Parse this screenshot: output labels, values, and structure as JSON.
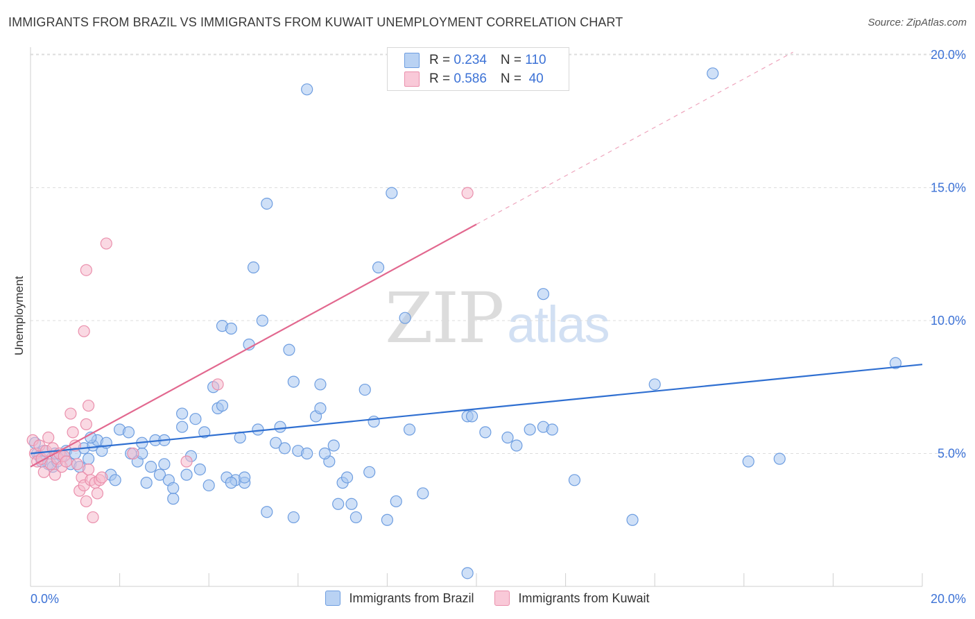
{
  "title": "IMMIGRANTS FROM BRAZIL VS IMMIGRANTS FROM KUWAIT UNEMPLOYMENT CORRELATION CHART",
  "source": "Source: ZipAtlas.com",
  "watermark": {
    "zip": "ZIP",
    "atlas": "atlas"
  },
  "legend_top": [
    {
      "r_label": "R = ",
      "r_value": "0.234",
      "n_label": "N = ",
      "n_value": "110"
    },
    {
      "r_label": "R = ",
      "r_value": "0.586",
      "n_label": "N = ",
      "n_value": " 40"
    }
  ],
  "legend_bottom": [
    "Immigrants from Brazil",
    "Immigrants from Kuwait"
  ],
  "colors": {
    "brazil_fill": "#a8c6f0",
    "brazil_stroke": "#6d9de0",
    "brazil_line": "#2f6fd1",
    "kuwait_fill": "#f6b9cc",
    "kuwait_stroke": "#ea8fac",
    "kuwait_line": "#e2688f",
    "tick_label": "#3c72d6",
    "grid": "#dcdcdc"
  },
  "chart_data": {
    "type": "scatter",
    "title": "IMMIGRANTS FROM BRAZIL VS IMMIGRANTS FROM KUWAIT UNEMPLOYMENT CORRELATION CHART",
    "xlabel": "",
    "ylabel": "Unemployment",
    "xlim": [
      0,
      20
    ],
    "ylim": [
      0,
      20.5
    ],
    "x_tick_labels": [
      {
        "value": 0,
        "label": "0.0%"
      },
      {
        "value": 20,
        "label": "20.0%"
      }
    ],
    "y_tick_labels": [
      {
        "value": 5,
        "label": "5.0%"
      },
      {
        "value": 10,
        "label": "10.0%"
      },
      {
        "value": 15,
        "label": "15.0%"
      },
      {
        "value": 20,
        "label": "20.0%"
      }
    ],
    "x_minor_ticks": [
      2,
      4,
      6,
      8,
      10,
      12,
      14,
      16,
      18,
      20
    ],
    "grid": true,
    "series": [
      {
        "name": "Immigrants from Brazil",
        "R": 0.234,
        "N": 110,
        "trend": {
          "x": [
            0,
            20
          ],
          "y": [
            5.0,
            8.35
          ],
          "solid_until": 20
        },
        "points": [
          [
            0.1,
            5.4
          ],
          [
            0.15,
            5.0
          ],
          [
            0.2,
            4.9
          ],
          [
            0.3,
            5.1
          ],
          [
            0.4,
            4.6
          ],
          [
            0.5,
            4.5
          ],
          [
            0.6,
            4.7
          ],
          [
            0.7,
            4.9
          ],
          [
            0.8,
            5.1
          ],
          [
            0.9,
            4.6
          ],
          [
            1.0,
            5.0
          ],
          [
            1.1,
            4.5
          ],
          [
            1.2,
            5.2
          ],
          [
            1.3,
            4.8
          ],
          [
            1.4,
            5.3
          ],
          [
            1.5,
            5.5
          ],
          [
            1.6,
            5.1
          ],
          [
            1.7,
            5.4
          ],
          [
            1.8,
            4.2
          ],
          [
            1.9,
            4.0
          ],
          [
            2.0,
            5.9
          ],
          [
            2.2,
            5.8
          ],
          [
            2.4,
            4.7
          ],
          [
            2.5,
            5.0
          ],
          [
            2.5,
            5.4
          ],
          [
            2.6,
            3.9
          ],
          [
            2.7,
            4.5
          ],
          [
            2.8,
            5.5
          ],
          [
            2.9,
            4.2
          ],
          [
            3.0,
            5.5
          ],
          [
            3.1,
            4.0
          ],
          [
            3.2,
            3.3
          ],
          [
            3.2,
            3.7
          ],
          [
            3.4,
            6.0
          ],
          [
            3.4,
            6.5
          ],
          [
            3.5,
            4.2
          ],
          [
            3.6,
            4.9
          ],
          [
            3.7,
            6.3
          ],
          [
            3.8,
            4.4
          ],
          [
            3.9,
            5.8
          ],
          [
            4.0,
            3.8
          ],
          [
            4.1,
            7.5
          ],
          [
            4.2,
            6.7
          ],
          [
            4.3,
            6.8
          ],
          [
            4.3,
            9.8
          ],
          [
            4.4,
            4.1
          ],
          [
            4.5,
            9.7
          ],
          [
            4.6,
            4.0
          ],
          [
            4.7,
            5.6
          ],
          [
            4.8,
            3.9
          ],
          [
            4.8,
            4.1
          ],
          [
            4.9,
            9.1
          ],
          [
            5.0,
            12.0
          ],
          [
            5.1,
            5.9
          ],
          [
            5.2,
            10.0
          ],
          [
            5.3,
            2.8
          ],
          [
            5.3,
            14.4
          ],
          [
            5.5,
            5.4
          ],
          [
            5.6,
            6.0
          ],
          [
            5.7,
            5.2
          ],
          [
            5.9,
            7.7
          ],
          [
            5.9,
            2.6
          ],
          [
            5.8,
            8.9
          ],
          [
            6.0,
            5.1
          ],
          [
            6.2,
            5.0
          ],
          [
            6.2,
            18.7
          ],
          [
            6.4,
            6.4
          ],
          [
            6.5,
            6.7
          ],
          [
            6.5,
            7.6
          ],
          [
            6.7,
            4.7
          ],
          [
            6.8,
            5.3
          ],
          [
            6.9,
            3.1
          ],
          [
            7.0,
            3.9
          ],
          [
            7.2,
            3.1
          ],
          [
            7.3,
            2.6
          ],
          [
            7.5,
            7.4
          ],
          [
            7.6,
            4.3
          ],
          [
            7.7,
            6.2
          ],
          [
            7.8,
            12.0
          ],
          [
            8.0,
            2.5
          ],
          [
            8.1,
            14.8
          ],
          [
            8.2,
            3.2
          ],
          [
            8.4,
            10.1
          ],
          [
            8.5,
            5.9
          ],
          [
            8.8,
            3.5
          ],
          [
            9.8,
            0.5
          ],
          [
            9.8,
            6.4
          ],
          [
            9.9,
            6.4
          ],
          [
            10.2,
            5.8
          ],
          [
            10.7,
            5.6
          ],
          [
            10.9,
            5.3
          ],
          [
            11.2,
            5.9
          ],
          [
            11.5,
            6.0
          ],
          [
            11.7,
            5.9
          ],
          [
            11.5,
            11.0
          ],
          [
            12.2,
            4.0
          ],
          [
            13.5,
            2.5
          ],
          [
            14.0,
            7.6
          ],
          [
            15.3,
            19.3
          ],
          [
            16.1,
            4.7
          ],
          [
            16.8,
            4.8
          ],
          [
            19.4,
            8.4
          ],
          [
            0.25,
            4.7
          ],
          [
            0.55,
            5.0
          ],
          [
            1.35,
            5.6
          ],
          [
            2.25,
            5.0
          ],
          [
            3.0,
            4.6
          ],
          [
            4.5,
            3.9
          ],
          [
            6.6,
            5.0
          ],
          [
            7.1,
            4.1
          ]
        ]
      },
      {
        "name": "Immigrants from Kuwait",
        "R": 0.586,
        "N": 40,
        "trend": {
          "x": [
            0,
            17.1
          ],
          "y": [
            4.5,
            20.1
          ],
          "solid_until": 10.0
        },
        "points": [
          [
            0.05,
            5.5
          ],
          [
            0.1,
            5.0
          ],
          [
            0.15,
            4.7
          ],
          [
            0.2,
            5.3
          ],
          [
            0.25,
            4.8
          ],
          [
            0.3,
            4.3
          ],
          [
            0.35,
            5.1
          ],
          [
            0.4,
            5.6
          ],
          [
            0.45,
            4.6
          ],
          [
            0.5,
            5.2
          ],
          [
            0.55,
            4.2
          ],
          [
            0.6,
            4.8
          ],
          [
            0.65,
            5.0
          ],
          [
            0.7,
            4.5
          ],
          [
            0.75,
            4.9
          ],
          [
            0.8,
            4.7
          ],
          [
            0.9,
            6.5
          ],
          [
            0.95,
            5.8
          ],
          [
            1.0,
            5.3
          ],
          [
            1.05,
            4.6
          ],
          [
            1.1,
            3.6
          ],
          [
            1.15,
            4.1
          ],
          [
            1.2,
            3.8
          ],
          [
            1.25,
            3.2
          ],
          [
            1.3,
            4.4
          ],
          [
            1.35,
            4.0
          ],
          [
            1.4,
            2.6
          ],
          [
            1.45,
            3.9
          ],
          [
            1.5,
            3.5
          ],
          [
            1.55,
            4.0
          ],
          [
            1.6,
            4.1
          ],
          [
            1.7,
            12.9
          ],
          [
            1.25,
            11.9
          ],
          [
            1.2,
            9.6
          ],
          [
            1.3,
            6.8
          ],
          [
            1.25,
            6.1
          ],
          [
            2.3,
            5.0
          ],
          [
            3.5,
            4.7
          ],
          [
            4.2,
            7.6
          ],
          [
            9.8,
            14.8
          ]
        ]
      }
    ]
  }
}
